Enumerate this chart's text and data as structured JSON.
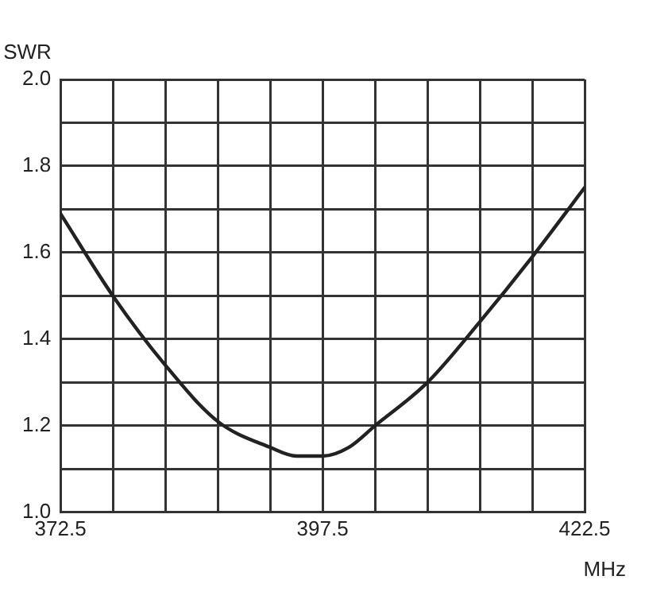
{
  "chart_data": {
    "type": "line",
    "xlabel": "MHz",
    "ylabel": "SWR",
    "x": [
      372.5,
      377.5,
      382.5,
      387.5,
      392.5,
      395,
      397.5,
      400,
      402.5,
      407.5,
      412.5,
      417.5,
      422.5
    ],
    "series": [
      {
        "color": "#222222",
        "values": [
          1.69,
          1.5,
          1.34,
          1.21,
          1.15,
          1.13,
          1.13,
          1.15,
          1.2,
          1.3,
          1.44,
          1.59,
          1.75
        ]
      }
    ],
    "xlim": [
      372.5,
      422.5
    ],
    "ylim": [
      1.0,
      2.0
    ],
    "xticks": [
      372.5,
      {
        "value": 377.5,
        "label": null
      },
      {
        "value": 382.5,
        "label": null
      },
      {
        "value": 387.5,
        "label": null
      },
      {
        "value": 392.5,
        "label": null
      },
      397.5,
      {
        "value": 402.5,
        "label": null
      },
      {
        "value": 407.5,
        "label": null
      },
      {
        "value": 412.5,
        "label": null
      },
      {
        "value": 417.5,
        "label": null
      },
      422.5
    ],
    "yticks": [
      {
        "value": 1.0,
        "label": "1.0"
      },
      {
        "value": 1.1,
        "label": null
      },
      {
        "value": 1.2,
        "label": "1.2"
      },
      {
        "value": 1.3,
        "label": null
      },
      {
        "value": 1.4,
        "label": "1.4"
      },
      {
        "value": 1.5,
        "label": null
      },
      {
        "value": 1.6,
        "label": "1.6"
      },
      {
        "value": 1.7,
        "label": null
      },
      {
        "value": 1.8,
        "label": "1.8"
      },
      {
        "value": 1.9,
        "label": null
      },
      {
        "value": 2.0,
        "label": "2.0"
      }
    ],
    "grid": true,
    "legend": false,
    "marker": "none",
    "line_style": "solid"
  }
}
